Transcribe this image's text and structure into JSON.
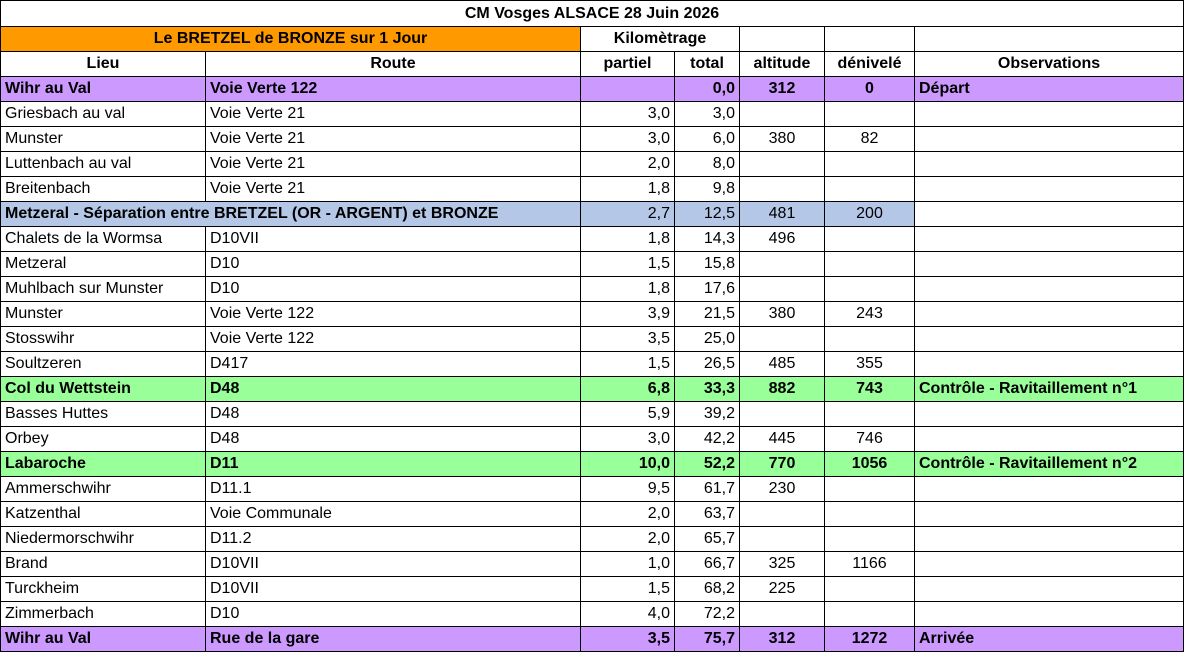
{
  "title": "CM Vosges ALSACE 28 Juin 2026",
  "subtitle": "Le BRETZEL de BRONZE sur 1  Jour",
  "kilometrage_label": "Kilomètrage",
  "columns": {
    "lieu": "Lieu",
    "route": "Route",
    "partiel": "partiel",
    "total": "total",
    "altitude": "altitude",
    "denivele": "dénivelé",
    "observations": "Observations"
  },
  "rows": [
    {
      "lieu": "Wihr au Val",
      "route": "Voie Verte 122",
      "partiel": "",
      "total": "0,0",
      "altitude": "312",
      "denivele": "0",
      "observations": "Départ"
    },
    {
      "lieu": "Griesbach au val",
      "route": "Voie Verte 21",
      "partiel": "3,0",
      "total": "3,0",
      "altitude": "",
      "denivele": "",
      "observations": ""
    },
    {
      "lieu": "Munster",
      "route": "Voie Verte 21",
      "partiel": "3,0",
      "total": "6,0",
      "altitude": "380",
      "denivele": "82",
      "observations": ""
    },
    {
      "lieu": "Luttenbach au val",
      "route": "Voie Verte 21",
      "partiel": "2,0",
      "total": "8,0",
      "altitude": "",
      "denivele": "",
      "observations": ""
    },
    {
      "lieu": "Breitenbach",
      "route": "Voie Verte 21",
      "partiel": "1,8",
      "total": "9,8",
      "altitude": "",
      "denivele": "",
      "observations": ""
    },
    {
      "lieu": "Metzeral - Séparation entre BRETZEL (OR - ARGENT) et BRONZE",
      "route": "",
      "partiel": "2,7",
      "total": "12,5",
      "altitude": "481",
      "denivele": "200",
      "observations": ""
    },
    {
      "lieu": "Chalets de la Wormsa",
      "route": "D10VII",
      "partiel": "1,8",
      "total": "14,3",
      "altitude": "496",
      "denivele": "",
      "observations": ""
    },
    {
      "lieu": "Metzeral",
      "route": "D10",
      "partiel": "1,5",
      "total": "15,8",
      "altitude": "",
      "denivele": "",
      "observations": ""
    },
    {
      "lieu": "Muhlbach sur Munster",
      "route": "D10",
      "partiel": "1,8",
      "total": "17,6",
      "altitude": "",
      "denivele": "",
      "observations": ""
    },
    {
      "lieu": "Munster",
      "route": "Voie Verte 122",
      "partiel": "3,9",
      "total": "21,5",
      "altitude": "380",
      "denivele": "243",
      "observations": ""
    },
    {
      "lieu": "Stosswihr",
      "route": "Voie Verte 122",
      "partiel": "3,5",
      "total": "25,0",
      "altitude": "",
      "denivele": "",
      "observations": ""
    },
    {
      "lieu": "Soultzeren",
      "route": "D417",
      "partiel": "1,5",
      "total": "26,5",
      "altitude": "485",
      "denivele": "355",
      "observations": ""
    },
    {
      "lieu": "Col du Wettstein",
      "route": "D48",
      "partiel": "6,8",
      "total": "33,3",
      "altitude": "882",
      "denivele": "743",
      "observations": "Contrôle - Ravitaillement n°1"
    },
    {
      "lieu": "Basses Huttes",
      "route": "D48",
      "partiel": "5,9",
      "total": "39,2",
      "altitude": "",
      "denivele": "",
      "observations": ""
    },
    {
      "lieu": "Orbey",
      "route": "D48",
      "partiel": "3,0",
      "total": "42,2",
      "altitude": "445",
      "denivele": "746",
      "observations": ""
    },
    {
      "lieu": "Labaroche",
      "route": "D11",
      "partiel": "10,0",
      "total": "52,2",
      "altitude": "770",
      "denivele": "1056",
      "observations": "Contrôle - Ravitaillement n°2"
    },
    {
      "lieu": "Ammerschwihr",
      "route": "D11.1",
      "partiel": "9,5",
      "total": "61,7",
      "altitude": "230",
      "denivele": "",
      "observations": ""
    },
    {
      "lieu": "Katzenthal",
      "route": "Voie Communale",
      "partiel": "2,0",
      "total": "63,7",
      "altitude": "",
      "denivele": "",
      "observations": ""
    },
    {
      "lieu": "Niedermorschwihr",
      "route": "D11.2",
      "partiel": "2,0",
      "total": "65,7",
      "altitude": "",
      "denivele": "",
      "observations": ""
    },
    {
      "lieu": "Brand",
      "route": "D10VII",
      "partiel": "1,0",
      "total": "66,7",
      "altitude": "325",
      "denivele": "1166",
      "observations": ""
    },
    {
      "lieu": "Turckheim",
      "route": "D10VII",
      "partiel": "1,5",
      "total": "68,2",
      "altitude": "225",
      "denivele": "",
      "observations": ""
    },
    {
      "lieu": "Zimmerbach",
      "route": "D10",
      "partiel": "4,0",
      "total": "72,2",
      "altitude": "",
      "denivele": "",
      "observations": ""
    },
    {
      "lieu": "Wihr au Val",
      "route": "Rue de la gare",
      "partiel": "3,5",
      "total": "75,7",
      "altitude": "312",
      "denivele": "1272",
      "observations": "Arrivée"
    }
  ],
  "colors": {
    "orange": "#ff9900",
    "purple": "#cc99ff",
    "green": "#99ff99",
    "blue": "#b4c7e7"
  }
}
